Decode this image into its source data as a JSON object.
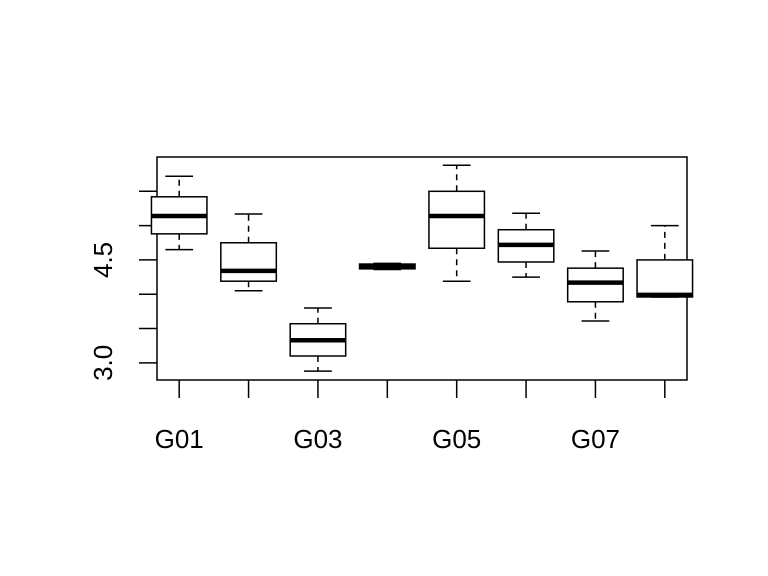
{
  "chart_data": {
    "type": "box",
    "categories": [
      "G01",
      null,
      "G03",
      null,
      "G05",
      null,
      "G07",
      null
    ],
    "whisker_low": [
      4.65,
      4.05,
      2.88,
      4.36,
      4.19,
      4.25,
      3.61,
      3.96
    ],
    "q1": [
      4.88,
      4.19,
      3.1,
      4.37,
      4.67,
      4.47,
      3.89,
      3.96
    ],
    "median": [
      5.14,
      4.34,
      3.33,
      4.4,
      5.14,
      4.72,
      4.17,
      3.99
    ],
    "q3": [
      5.42,
      4.75,
      3.57,
      4.44,
      5.5,
      4.94,
      4.38,
      4.5
    ],
    "whisker_high": [
      5.72,
      5.17,
      3.8,
      4.45,
      5.88,
      5.18,
      4.63,
      5.0
    ],
    "color": "#000000",
    "ylim": [
      2.75,
      6.0
    ],
    "yticks": [
      {
        "value": 3,
        "label": "3.0"
      },
      {
        "value": 3.5,
        "label": null
      },
      {
        "value": 4,
        "label": null
      },
      {
        "value": 4.5,
        "label": "4.5"
      },
      {
        "value": 5,
        "label": null
      },
      {
        "value": 5.5,
        "label": null
      }
    ],
    "grid": false
  }
}
